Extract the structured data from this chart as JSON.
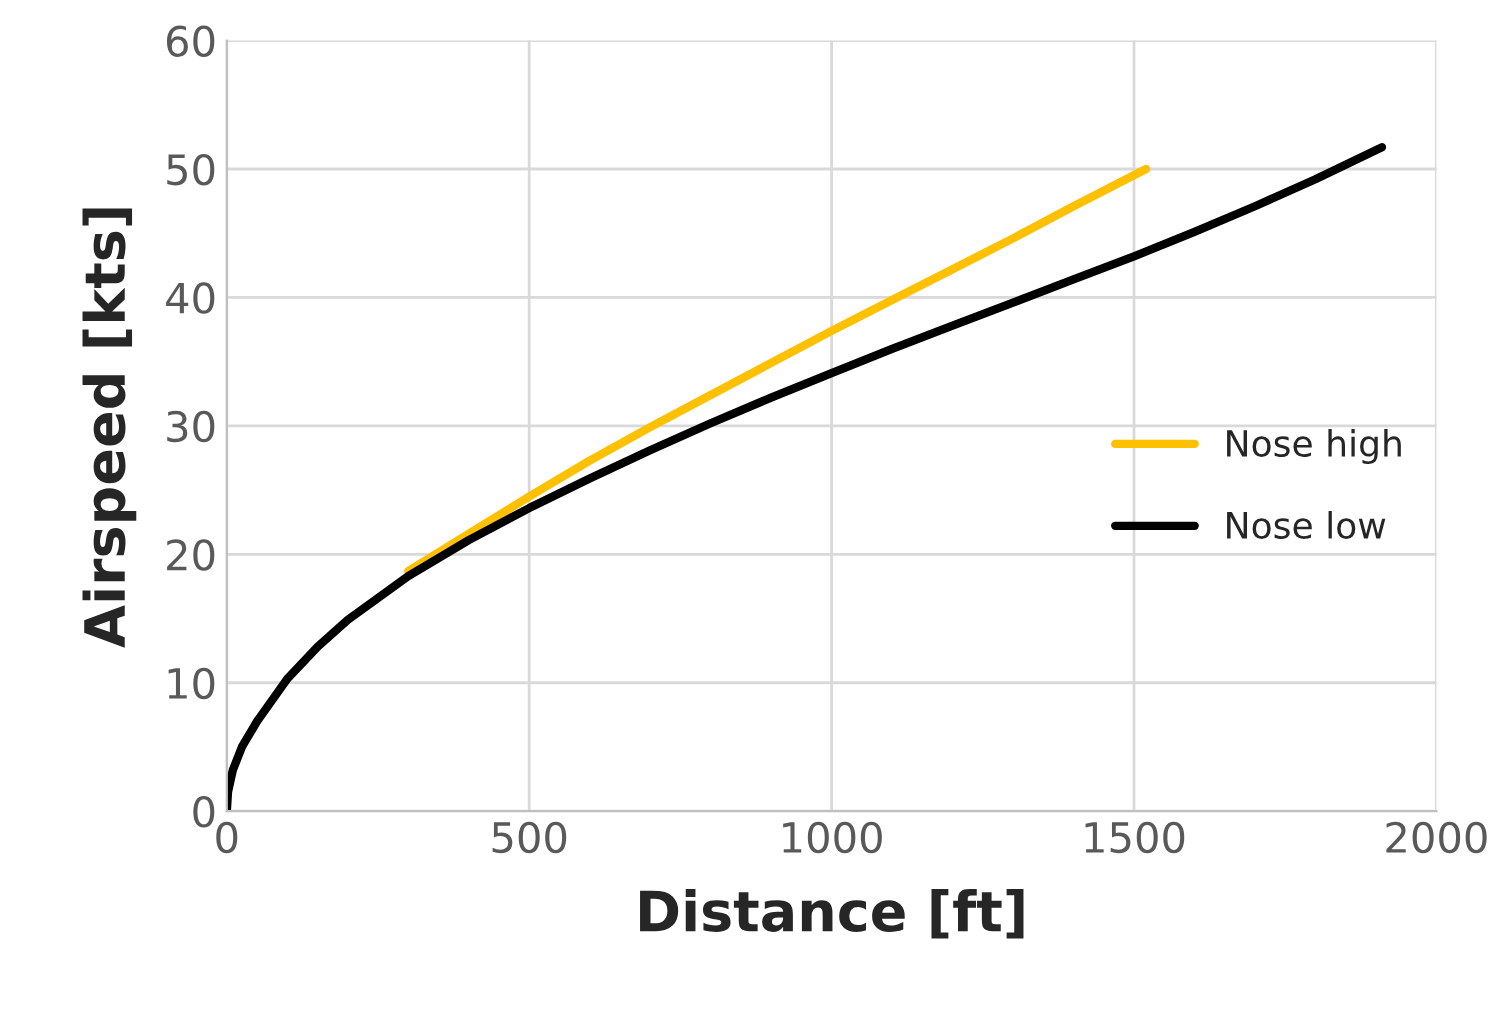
{
  "chart_data": {
    "type": "line",
    "xlabel": "Distance [ft]",
    "ylabel": "Airspeed [kts]",
    "xlim": [
      0,
      2000
    ],
    "xticks": [
      0,
      500,
      1000,
      1500,
      2000
    ],
    "ylim": [
      0,
      60
    ],
    "yticks": [
      0,
      10,
      20,
      30,
      40,
      50,
      60
    ],
    "grid": true,
    "legend": "right",
    "marker": "none",
    "line_style": "solid",
    "series": [
      {
        "name": "Nose high",
        "color": "#ffc000",
        "x": [
          300,
          400,
          500,
          600,
          700,
          800,
          900,
          1000,
          1100,
          1200,
          1300,
          1400,
          1520
        ],
        "values": [
          18.7,
          21.6,
          24.5,
          27.3,
          29.9,
          32.4,
          34.9,
          37.4,
          39.8,
          42.2,
          44.6,
          47.1,
          50
        ]
      },
      {
        "name": "Nose low",
        "color": "#000000",
        "x": [
          0,
          2,
          10,
          25,
          50,
          100,
          150,
          200,
          300,
          400,
          500,
          600,
          700,
          800,
          900,
          1000,
          1100,
          1200,
          1300,
          1400,
          1500,
          1600,
          1700,
          1800,
          1910
        ],
        "values": [
          0,
          1.5,
          3.2,
          5,
          7,
          10.3,
          12.8,
          14.9,
          18.3,
          21.1,
          23.6,
          25.9,
          28.1,
          30.2,
          32.2,
          34.1,
          36,
          37.8,
          39.6,
          41.4,
          43.2,
          45.1,
          47.1,
          49.2,
          51.7
        ]
      }
    ]
  }
}
